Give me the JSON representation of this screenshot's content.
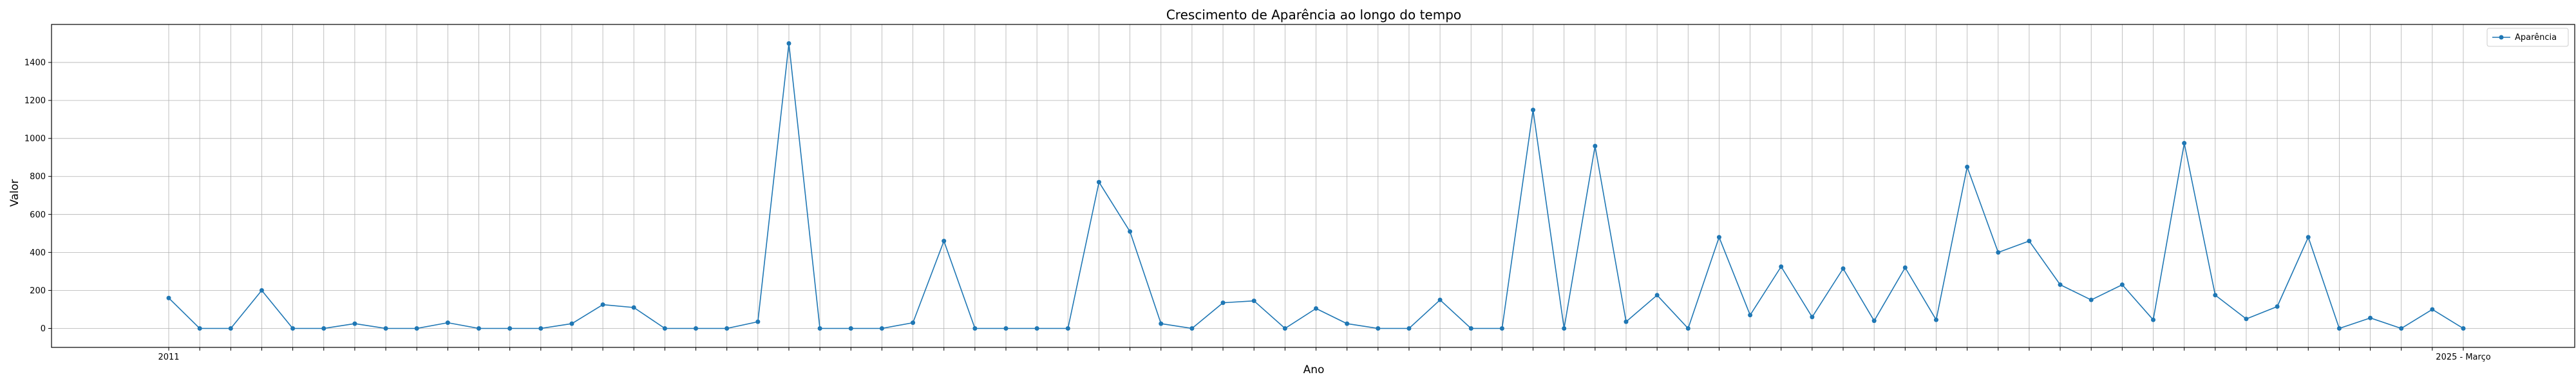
{
  "chart_data": {
    "type": "line",
    "title": "Crescimento de Aparência ao longo do tempo",
    "xlabel": "Ano",
    "ylabel": "Valor",
    "ylim": [
      -100,
      1600
    ],
    "yticks": [
      0,
      200,
      400,
      600,
      800,
      1000,
      1200,
      1400
    ],
    "grid": true,
    "legend_position": "top-right",
    "colors": {
      "line": "#1f77b4",
      "grid": "#b0b0b0",
      "axis": "#000000"
    },
    "x_first_label": "2011",
    "x_last_label": "2025 - Março",
    "series": [
      {
        "name": "Aparência",
        "values": [
          160,
          0,
          0,
          200,
          0,
          0,
          25,
          0,
          0,
          30,
          0,
          0,
          0,
          25,
          125,
          110,
          0,
          0,
          0,
          35,
          1500,
          0,
          0,
          0,
          30,
          460,
          0,
          0,
          0,
          0,
          770,
          510,
          25,
          0,
          135,
          145,
          0,
          105,
          25,
          0,
          0,
          150,
          0,
          0,
          1150,
          0,
          960,
          35,
          175,
          0,
          480,
          70,
          325,
          60,
          315,
          40,
          320,
          45,
          850,
          400,
          460,
          230,
          150,
          230,
          45,
          975,
          175,
          50,
          115,
          480,
          0,
          55,
          0,
          100,
          0
        ]
      }
    ]
  }
}
